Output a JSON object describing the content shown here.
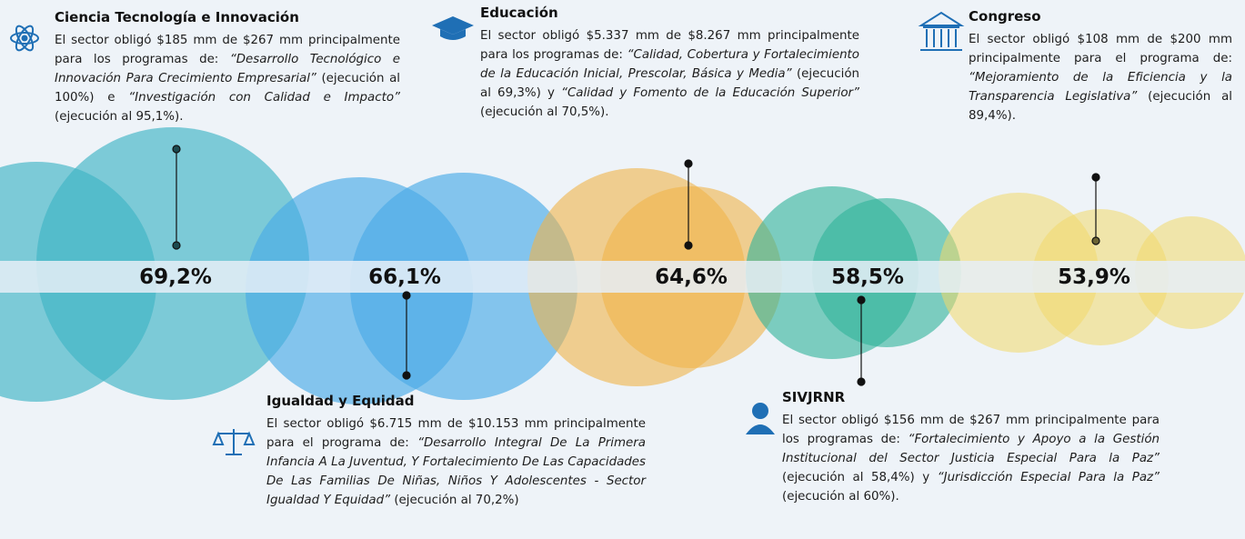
{
  "sectors": [
    {
      "title": "Ciencia Tecnología e Innovación",
      "percent": "69,2%",
      "body": [
        "El sector obligó $185 mm de $267 mm principalmente para los programas de: ",
        "“Desarrollo Tecnológico e Innovación Para Crecimiento Empresarial”",
        " (ejecución al 100%) e ",
        "“Investigación con Calidad e Impacto”",
        " (ejecución al 95,1%)."
      ]
    },
    {
      "title": "Educación",
      "percent": "64,6%",
      "body": [
        "El sector obligó $5.337 mm de $8.267 mm principalmente para los programas de: ",
        "“Calidad, Cobertura y Fortalecimiento de la Educación Inicial, Prescolar, Básica y Media”",
        " (ejecución al 69,3%) y ",
        "“Calidad y Fomento de la Educación Superior”",
        " (ejecución al 70,5%)."
      ]
    },
    {
      "title": "Congreso",
      "percent": "53,9%",
      "body": [
        "El sector obligó $108 mm de $200 mm principalmente para el programa de: ",
        "“Mejoramiento de la Eficiencia y la Transparencia Legislativa”",
        " (ejecución al 89,4%)."
      ]
    },
    {
      "title": "Igualdad y Equidad",
      "percent": "66,1%",
      "body": [
        "El sector obligó $6.715 mm de $10.153 mm principalmente para el programa de: ",
        "“Desarrollo Integral De La Primera Infancia A La Juventud, Y Fortalecimiento De Las Capacidades De Las Familias De Niñas, Niños Y Adolescentes - Sector Igualdad Y Equidad”",
        " (ejecución al 70,2%)"
      ]
    },
    {
      "title": "SIVJRNR",
      "percent": "58,5%",
      "body": [
        "El sector obligó $156 mm de $267 mm principalmente para los programas de: ",
        "“Fortalecimiento y Apoyo a la Gestión Institucional del Sector Justicia Especial Para la Paz”",
        " (ejecución al 58,4%) y ",
        "“Jurisdicción Especial Para la Paz”",
        " (ejecución al 60%)."
      ]
    }
  ]
}
